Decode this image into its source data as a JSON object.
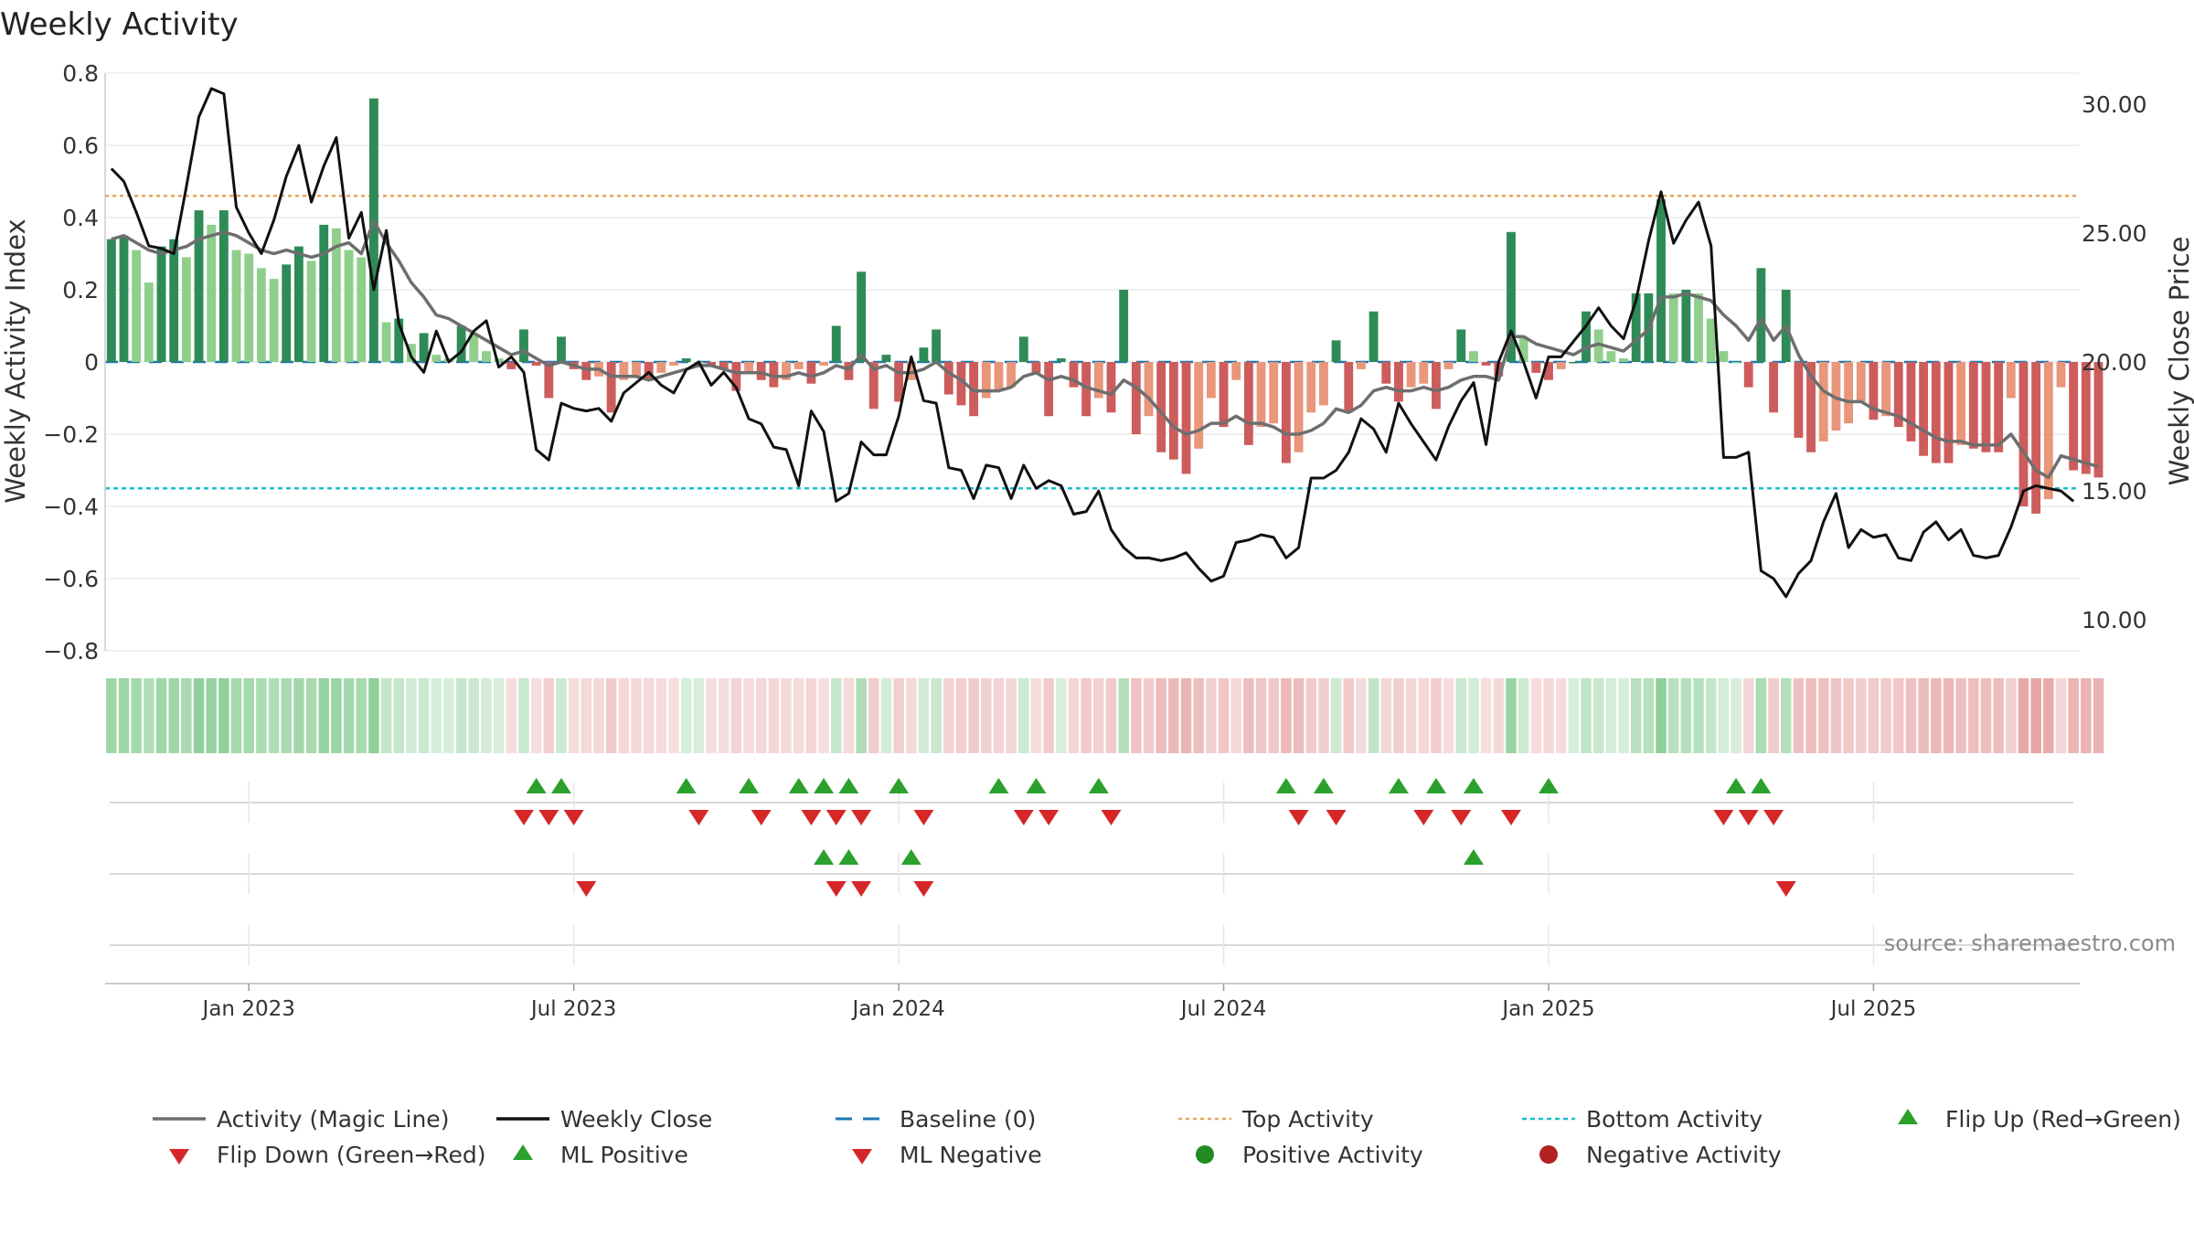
{
  "page": {
    "title": "Weekly Activity",
    "watermark": "source: sharemaestro.com"
  },
  "chart_data": {
    "type": "bar+line",
    "title": "Weekly Activity",
    "ylabel_left": "Weekly Activity Index",
    "ylabel_right": "Weekly Close Price",
    "ylim_left": [
      -0.8,
      0.8
    ],
    "ylim_right": [
      8.8,
      31.2
    ],
    "left_ticks": [
      0.8,
      0.6,
      0.4,
      0.2,
      0,
      -0.2,
      -0.4,
      -0.6,
      -0.8
    ],
    "left_tick_labels": [
      "0.8",
      "0.6",
      "0.4",
      "0.2",
      "0",
      "−0.2",
      "−0.4",
      "−0.6",
      "−0.8"
    ],
    "right_ticks": [
      30,
      25,
      20,
      15,
      10
    ],
    "right_tick_labels": [
      "30.00",
      "25.00",
      "20.00",
      "15.00",
      "10.00"
    ],
    "x_tick_labels": [
      "Jan 2023",
      "Jul 2023",
      "Jan 2024",
      "Jul 2024",
      "Jan 2025",
      "Jul 2025"
    ],
    "x_tick_weeks": [
      11,
      37,
      63,
      89,
      115,
      141
    ],
    "weeks": 158,
    "top_activity": 0.46,
    "bottom_activity": -0.35,
    "activity": [
      0.34,
      0.35,
      0.31,
      0.22,
      0.32,
      0.34,
      0.29,
      0.42,
      0.38,
      0.42,
      0.31,
      0.3,
      0.26,
      0.23,
      0.27,
      0.32,
      0.28,
      0.38,
      0.37,
      0.31,
      0.29,
      0.73,
      0.11,
      0.12,
      0.05,
      0.08,
      0.02,
      0.01,
      0.1,
      0.08,
      0.03,
      0.01,
      -0.02,
      0.09,
      -0.01,
      -0.1,
      0.07,
      -0.02,
      -0.05,
      -0.04,
      -0.14,
      -0.05,
      -0.04,
      -0.05,
      -0.03,
      -0.01,
      0.01,
      0.0,
      -0.01,
      -0.02,
      -0.08,
      -0.03,
      -0.05,
      -0.07,
      -0.05,
      -0.02,
      -0.06,
      -0.01,
      0.1,
      -0.05,
      0.25,
      -0.13,
      0.02,
      -0.11,
      -0.05,
      0.04,
      0.09,
      -0.09,
      -0.12,
      -0.15,
      -0.1,
      -0.08,
      -0.07,
      0.07,
      -0.03,
      -0.15,
      0.01,
      -0.07,
      -0.15,
      -0.1,
      -0.14,
      0.2,
      -0.2,
      -0.15,
      -0.25,
      -0.27,
      -0.31,
      -0.24,
      -0.1,
      -0.18,
      -0.05,
      -0.23,
      -0.18,
      -0.17,
      -0.28,
      -0.25,
      -0.14,
      -0.12,
      0.06,
      -0.14,
      -0.02,
      0.14,
      -0.06,
      -0.11,
      -0.07,
      -0.06,
      -0.13,
      -0.02,
      0.09,
      0.03,
      -0.01,
      -0.04,
      0.36,
      0.07,
      -0.03,
      -0.05,
      -0.02,
      0.0,
      0.14,
      0.09,
      0.03,
      0.01,
      0.19,
      0.19,
      0.45,
      0.19,
      0.2,
      0.19,
      0.12,
      0.03,
      0.0,
      -0.07,
      0.26,
      -0.14,
      0.2,
      -0.21,
      -0.25,
      -0.22,
      -0.19,
      -0.17,
      -0.11,
      -0.16,
      -0.15,
      -0.18,
      -0.22,
      -0.26,
      -0.28,
      -0.28,
      -0.23,
      -0.24,
      -0.25,
      -0.25,
      -0.1,
      -0.4,
      -0.42,
      -0.38,
      -0.07,
      -0.3,
      -0.31,
      -0.32
    ],
    "magic_line": [
      0.34,
      0.35,
      0.33,
      0.31,
      0.3,
      0.31,
      0.32,
      0.34,
      0.35,
      0.36,
      0.35,
      0.33,
      0.31,
      0.3,
      0.31,
      0.3,
      0.29,
      0.3,
      0.32,
      0.33,
      0.3,
      0.39,
      0.33,
      0.28,
      0.22,
      0.18,
      0.13,
      0.12,
      0.1,
      0.08,
      0.06,
      0.04,
      0.02,
      0.03,
      0.01,
      -0.01,
      0.0,
      -0.01,
      -0.02,
      -0.02,
      -0.04,
      -0.04,
      -0.04,
      -0.05,
      -0.04,
      -0.03,
      -0.02,
      -0.01,
      -0.01,
      -0.02,
      -0.03,
      -0.03,
      -0.03,
      -0.04,
      -0.04,
      -0.03,
      -0.04,
      -0.03,
      -0.01,
      -0.02,
      0.02,
      -0.02,
      -0.01,
      -0.03,
      -0.03,
      -0.02,
      0.0,
      -0.03,
      -0.05,
      -0.08,
      -0.08,
      -0.08,
      -0.07,
      -0.04,
      -0.03,
      -0.05,
      -0.04,
      -0.05,
      -0.07,
      -0.08,
      -0.09,
      -0.05,
      -0.07,
      -0.1,
      -0.14,
      -0.18,
      -0.2,
      -0.19,
      -0.17,
      -0.17,
      -0.15,
      -0.17,
      -0.17,
      -0.18,
      -0.2,
      -0.2,
      -0.19,
      -0.17,
      -0.13,
      -0.14,
      -0.12,
      -0.08,
      -0.07,
      -0.08,
      -0.08,
      -0.07,
      -0.08,
      -0.07,
      -0.05,
      -0.04,
      -0.04,
      -0.05,
      0.07,
      0.07,
      0.05,
      0.04,
      0.03,
      0.02,
      0.04,
      0.05,
      0.04,
      0.03,
      0.06,
      0.09,
      0.18,
      0.18,
      0.19,
      0.18,
      0.17,
      0.13,
      0.1,
      0.06,
      0.12,
      0.06,
      0.1,
      0.02,
      -0.04,
      -0.08,
      -0.1,
      -0.11,
      -0.11,
      -0.13,
      -0.14,
      -0.15,
      -0.17,
      -0.19,
      -0.21,
      -0.22,
      -0.22,
      -0.23,
      -0.23,
      -0.23,
      -0.2,
      -0.25,
      -0.3,
      -0.32,
      -0.26,
      -0.27,
      -0.28,
      -0.29
    ],
    "weekly_close": [
      27.5,
      27.0,
      25.8,
      24.5,
      24.4,
      24.2,
      26.8,
      29.5,
      30.6,
      30.4,
      26.0,
      25.0,
      24.2,
      25.5,
      27.2,
      28.4,
      26.2,
      27.6,
      28.7,
      24.8,
      25.8,
      22.8,
      25.1,
      21.5,
      20.2,
      19.6,
      21.2,
      20.0,
      20.4,
      21.2,
      21.6,
      19.8,
      20.2,
      19.6,
      16.6,
      16.2,
      18.4,
      18.2,
      18.1,
      18.2,
      17.7,
      18.8,
      19.2,
      19.6,
      19.1,
      18.8,
      19.7,
      20.0,
      19.1,
      19.6,
      19.0,
      17.8,
      17.6,
      16.7,
      16.6,
      15.2,
      18.1,
      17.3,
      14.6,
      14.9,
      16.9,
      16.4,
      16.4,
      17.9,
      20.2,
      18.5,
      18.4,
      15.9,
      15.8,
      14.7,
      16.0,
      15.9,
      14.7,
      16.0,
      15.1,
      15.4,
      15.2,
      14.1,
      14.2,
      15.0,
      13.5,
      12.8,
      12.4,
      12.4,
      12.3,
      12.4,
      12.6,
      12.0,
      11.5,
      11.7,
      13.0,
      13.1,
      13.3,
      13.2,
      12.4,
      12.8,
      15.5,
      15.5,
      15.8,
      16.5,
      17.8,
      17.4,
      16.5,
      18.4,
      17.6,
      16.9,
      16.2,
      17.5,
      18.5,
      19.2,
      16.8,
      20.0,
      21.2,
      20.0,
      18.6,
      20.2,
      20.2,
      20.8,
      21.4,
      22.1,
      21.4,
      20.9,
      22.4,
      24.7,
      26.6,
      24.6,
      25.5,
      26.2,
      24.5,
      16.3,
      16.3,
      16.5,
      11.9,
      11.6,
      10.9,
      11.8,
      12.3,
      13.8,
      14.9,
      12.8,
      13.5,
      13.2,
      13.3,
      12.4,
      12.3,
      13.4,
      13.8,
      13.1,
      13.5,
      12.5,
      12.4,
      12.5,
      13.6,
      15.0,
      15.2,
      15.1,
      15.0,
      14.6
    ],
    "flip_up_weeks": [
      34,
      36,
      46,
      51,
      55,
      57,
      59,
      63,
      71,
      74,
      79,
      94,
      97,
      103,
      106,
      109,
      115,
      130,
      132
    ],
    "flip_down_weeks": [
      33,
      35,
      37,
      47,
      52,
      56,
      58,
      60,
      65,
      73,
      75,
      80,
      95,
      98,
      105,
      108,
      112,
      129,
      131,
      133
    ],
    "ml_positive_weeks": [
      57,
      59,
      64,
      109
    ],
    "ml_negative_weeks": [
      38,
      58,
      60,
      65,
      134
    ],
    "legend": [
      "Activity (Magic Line)",
      "Weekly Close",
      "Baseline (0)",
      "Top Activity",
      "Bottom Activity",
      "Flip Up (Red→Green)",
      "Flip Down (Green→Red)",
      "ML Positive",
      "ML Negative",
      "Positive Activity",
      "Negative Activity"
    ],
    "colors": {
      "magic_line": "#6e6e6e",
      "weekly_close": "#111111",
      "baseline": "#1f77b4",
      "top_activity": "#e8a45a",
      "bottom_activity": "#17becf",
      "pos_dark": "#2e8b57",
      "pos_mid": "#3a9d5d",
      "pos_light": "#8fcf8b",
      "neg_dark": "#cd5c5c",
      "neg_light": "#e9967a",
      "flip_up": "#2ca02c",
      "flip_down": "#d62728",
      "positive_activity": "#228b22",
      "negative_activity": "#b22222",
      "strip_pos": "#8fcf9a",
      "strip_neg": "#e6a3a3",
      "grid": "#ececec",
      "axis": "#cccccc"
    }
  }
}
